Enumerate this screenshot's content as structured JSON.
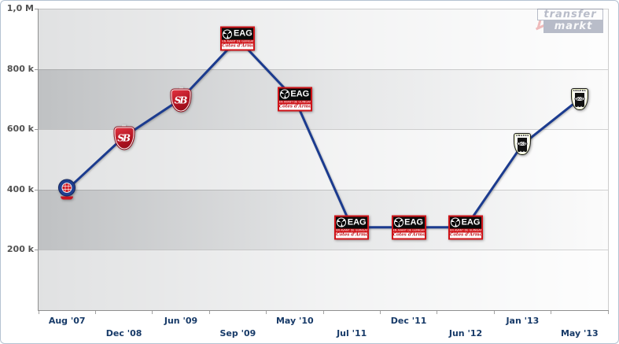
{
  "watermark": {
    "top": "transfer",
    "bottom": "markt"
  },
  "y_axis": {
    "labels": [
      "1,0 M",
      "800 k",
      "600 k",
      "400 k",
      "200 k"
    ]
  },
  "colors": {
    "line": "#1b3b8f",
    "x_label": "#173a68",
    "y_label": "#525252",
    "brand_navy": "#1e2c55",
    "brand_red": "#cf1318"
  },
  "chart_data": {
    "type": "line",
    "title": "",
    "xlabel": "",
    "ylabel": "",
    "x": [
      "Aug '07",
      "Dec '08",
      "Jun '09",
      "Sep '09",
      "May '10",
      "Jul '11",
      "Dec '11",
      "Jun '12",
      "Jan '13",
      "May '13"
    ],
    "values": [
      400000,
      575000,
      700000,
      900000,
      700000,
      275000,
      275000,
      275000,
      550000,
      700000
    ],
    "clubs": [
      "round-crest",
      "brest",
      "brest",
      "guingamp",
      "guingamp",
      "guingamp",
      "guingamp",
      "guingamp",
      "angers",
      "angers"
    ],
    "ylim": [
      0,
      1000000
    ],
    "y_ticks": [
      1000000,
      800000,
      600000,
      400000,
      200000
    ],
    "grid": "horizontal-bands-alternating",
    "legend": "none",
    "marker": "club-logo"
  },
  "logos": {
    "guingamp": {
      "abbr": "EAG",
      "line1": "EN AVANT DE GUINGAMP",
      "line2": "Côtes d'Armor"
    },
    "brest": {
      "abbr": "SB"
    },
    "angers": {
      "top": "ANGERS",
      "abbr": "SCO"
    }
  }
}
